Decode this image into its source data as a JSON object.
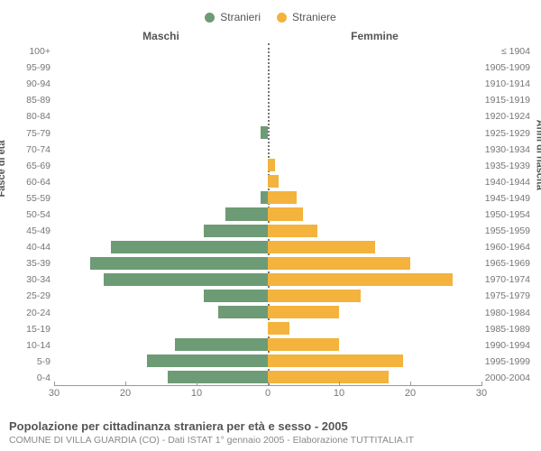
{
  "chart": {
    "type": "population-pyramid",
    "legend": [
      {
        "label": "Stranieri",
        "color": "#6d9b75"
      },
      {
        "label": "Straniere",
        "color": "#f3b33d"
      }
    ],
    "headers": {
      "left": "Maschi",
      "right": "Femmine"
    },
    "axis_titles": {
      "left": "Fasce di età",
      "right": "Anni di nascita"
    },
    "x_max": 30,
    "x_ticks": [
      30,
      20,
      10,
      0,
      10,
      20,
      30
    ],
    "background_color": "#ffffff",
    "centerline_color": "#777777",
    "axis_color": "#999999",
    "label_color": "#767676",
    "bar_gap_ratio": 0.22,
    "rows": [
      {
        "age": "100+",
        "birth": "≤ 1904",
        "m": 0,
        "f": 0
      },
      {
        "age": "95-99",
        "birth": "1905-1909",
        "m": 0,
        "f": 0
      },
      {
        "age": "90-94",
        "birth": "1910-1914",
        "m": 0,
        "f": 0
      },
      {
        "age": "85-89",
        "birth": "1915-1919",
        "m": 0,
        "f": 0
      },
      {
        "age": "80-84",
        "birth": "1920-1924",
        "m": 0,
        "f": 0
      },
      {
        "age": "75-79",
        "birth": "1925-1929",
        "m": 1,
        "f": 0
      },
      {
        "age": "70-74",
        "birth": "1930-1934",
        "m": 0,
        "f": 0
      },
      {
        "age": "65-69",
        "birth": "1935-1939",
        "m": 0,
        "f": 1
      },
      {
        "age": "60-64",
        "birth": "1940-1944",
        "m": 0,
        "f": 1.5
      },
      {
        "age": "55-59",
        "birth": "1945-1949",
        "m": 1,
        "f": 4
      },
      {
        "age": "50-54",
        "birth": "1950-1954",
        "m": 6,
        "f": 5
      },
      {
        "age": "45-49",
        "birth": "1955-1959",
        "m": 9,
        "f": 7
      },
      {
        "age": "40-44",
        "birth": "1960-1964",
        "m": 22,
        "f": 15
      },
      {
        "age": "35-39",
        "birth": "1965-1969",
        "m": 25,
        "f": 20
      },
      {
        "age": "30-34",
        "birth": "1970-1974",
        "m": 23,
        "f": 26
      },
      {
        "age": "25-29",
        "birth": "1975-1979",
        "m": 9,
        "f": 13
      },
      {
        "age": "20-24",
        "birth": "1980-1984",
        "m": 7,
        "f": 10
      },
      {
        "age": "15-19",
        "birth": "1985-1989",
        "m": 0,
        "f": 3
      },
      {
        "age": "10-14",
        "birth": "1990-1994",
        "m": 13,
        "f": 10
      },
      {
        "age": "5-9",
        "birth": "1995-1999",
        "m": 17,
        "f": 19
      },
      {
        "age": "0-4",
        "birth": "2000-2004",
        "m": 14,
        "f": 17
      }
    ]
  },
  "footer": {
    "title": "Popolazione per cittadinanza straniera per età e sesso - 2005",
    "subtitle": "COMUNE DI VILLA GUARDIA (CO) - Dati ISTAT 1° gennaio 2005 - Elaborazione TUTTITALIA.IT"
  }
}
